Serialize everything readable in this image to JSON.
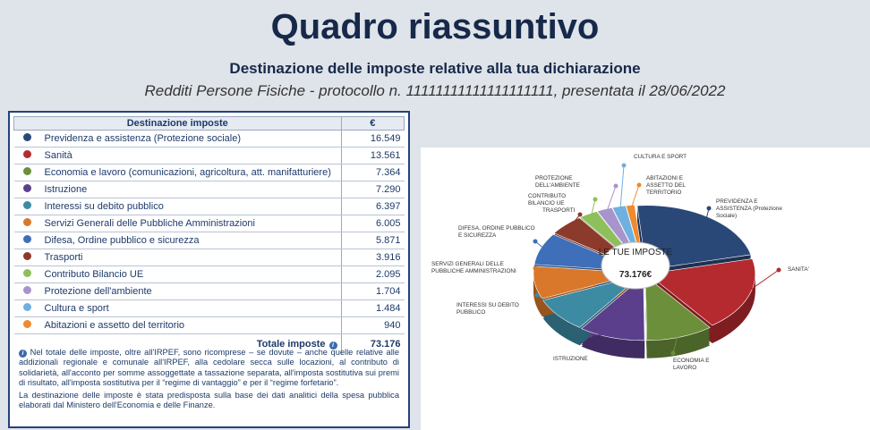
{
  "header": {
    "title": "Quadro riassuntivo",
    "subtitle": "Destinazione delle imposte relative alla tua dichiarazione",
    "protocol": "Redditi Persone Fisiche - protocollo n. 11111111111111111111, presentata il 28/06/2022"
  },
  "table": {
    "headers": [
      "Destinazione imposte",
      "€"
    ],
    "rows": [
      {
        "name": "Previdenza e assistenza (Protezione sociale)",
        "amount": {
          "value": 16549,
          "label": "16.549"
        },
        "color": "#2a4877",
        "chart_label": "PREVIDENZA E ASSISTENZA (Protezione Sociale)"
      },
      {
        "name": "Sanità",
        "amount": {
          "value": 13561,
          "label": "13.561"
        },
        "color": "#b52a2f",
        "chart_label": "SANITA'"
      },
      {
        "name": "Economia e lavoro (comunicazioni, agricoltura, att. manifatturiere)",
        "amount": {
          "value": 7364,
          "label": "7.364"
        },
        "color": "#6b8f3a",
        "chart_label": "ECONOMIA E LAVORO"
      },
      {
        "name": "Istruzione",
        "amount": {
          "value": 7290,
          "label": "7.290"
        },
        "color": "#5b3f8c",
        "chart_label": "ISTRUZIONE"
      },
      {
        "name": "Interessi su debito pubblico",
        "amount": {
          "value": 6397,
          "label": "6.397"
        },
        "color": "#3d8aa3",
        "chart_label": "INTERESSI SU DEBITO PUBBLICO"
      },
      {
        "name": "Servizi Generali delle Pubbliche Amministrazioni",
        "amount": {
          "value": 6005,
          "label": "6.005"
        },
        "color": "#d9782a",
        "chart_label": "SERVIZI GENERALI DELLE PUBBLICHE AMMINISTRAZIONI"
      },
      {
        "name": "Difesa, Ordine pubblico e sicurezza",
        "amount": {
          "value": 5871,
          "label": "5.871"
        },
        "color": "#3e6fb8",
        "chart_label": "DIFESA, ORDINE PUBBLICO E SICUREZZA"
      },
      {
        "name": "Trasporti",
        "amount": {
          "value": 3916,
          "label": "3.916"
        },
        "color": "#8c3a2c",
        "chart_label": "TRASPORTI"
      },
      {
        "name": "Contributo Bilancio UE",
        "amount": {
          "value": 2095,
          "label": "2.095"
        },
        "color": "#8dc05a",
        "chart_label": "CONTRIBUTO BILANCIO UE"
      },
      {
        "name": "Protezione dell'ambiente",
        "amount": {
          "value": 1704,
          "label": "1.704"
        },
        "color": "#a894cc",
        "chart_label": "PROTEZIONE DELL'AMBIENTE"
      },
      {
        "name": "Cultura e sport",
        "amount": {
          "value": 1484,
          "label": "1.484"
        },
        "color": "#6fb0e0",
        "chart_label": "CULTURA E SPORT"
      },
      {
        "name": "Abitazioni e assetto del territorio",
        "amount": {
          "value": 940,
          "label": "940"
        },
        "color": "#ee8a30",
        "chart_label": "ABITAZIONI E ASSETTO DEL TERRITORIO"
      }
    ],
    "total_label": "Totale imposte",
    "total": "73.176"
  },
  "note": [
    "Nel totale delle imposte, oltre all'IRPEF, sono ricomprese – se dovute – anche quelle relative alle addizionali regionale e comunale all'IRPEF, alla cedolare secca sulle locazioni, al contributo di solidarietà, all'acconto per somme assoggettate a tassazione separata, all'imposta sostitutiva sui premi di risultato, all'imposta sostitutiva per il “regime di vantaggio” e per il “regime forfetario”.",
    "La destinazione delle imposte è stata predisposta sulla base dei dati analitici della spesa pubblica elaborati dal Ministero dell'Economia e delle Finanze."
  ],
  "chart": {
    "center_label": "LE TUE IMPOSTE",
    "center_value": "73.176€"
  }
}
